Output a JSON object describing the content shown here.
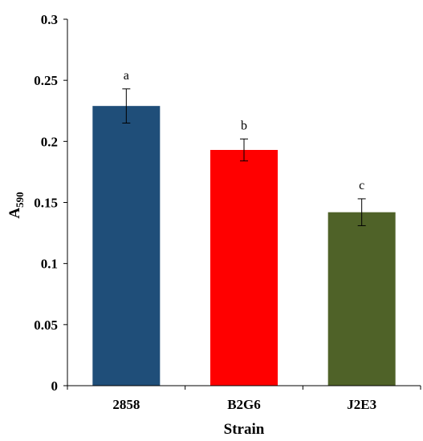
{
  "chart_data": {
    "type": "bar",
    "categories": [
      "2858",
      "B2G6",
      "J2E3"
    ],
    "values": [
      0.229,
      0.193,
      0.142
    ],
    "error": [
      0.014,
      0.009,
      0.011
    ],
    "significance_labels": [
      "a",
      "b",
      "c"
    ],
    "colors": [
      "#1F4E79",
      "#FF0000",
      "#4F6228"
    ],
    "xlabel": "Strain",
    "ylabel": {
      "main": "A",
      "subscript": "590"
    },
    "ylim": [
      0,
      0.3
    ],
    "yticks": [
      "0",
      "0.05",
      "0.1",
      "0.15",
      "0.2",
      "0.25",
      "0.3"
    ],
    "grid": false,
    "legend": "none"
  }
}
